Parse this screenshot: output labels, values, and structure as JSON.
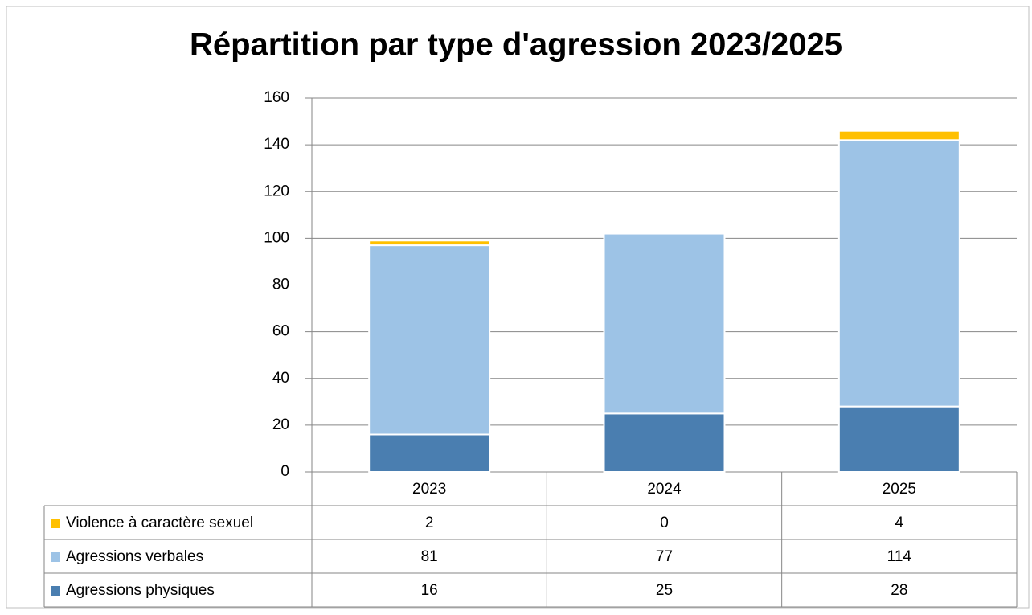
{
  "chart_data": {
    "type": "stacked_bar",
    "title": "Répartition par type d'agression 2023/2025",
    "categories": [
      "2023",
      "2024",
      "2025"
    ],
    "series": [
      {
        "name": "Agressions physiques",
        "color": "#4a7eb0",
        "values": [
          16,
          25,
          28
        ]
      },
      {
        "name": "Agressions verbales",
        "color": "#9dc3e6",
        "values": [
          81,
          77,
          114
        ]
      },
      {
        "name": "Violence à caractère sexuel",
        "color": "#ffc000",
        "values": [
          2,
          0,
          4
        ]
      }
    ],
    "ylim": [
      0,
      160
    ],
    "yticks": [
      0,
      20,
      40,
      60,
      80,
      100,
      120,
      140,
      160
    ],
    "grid": true,
    "data_table": true
  }
}
